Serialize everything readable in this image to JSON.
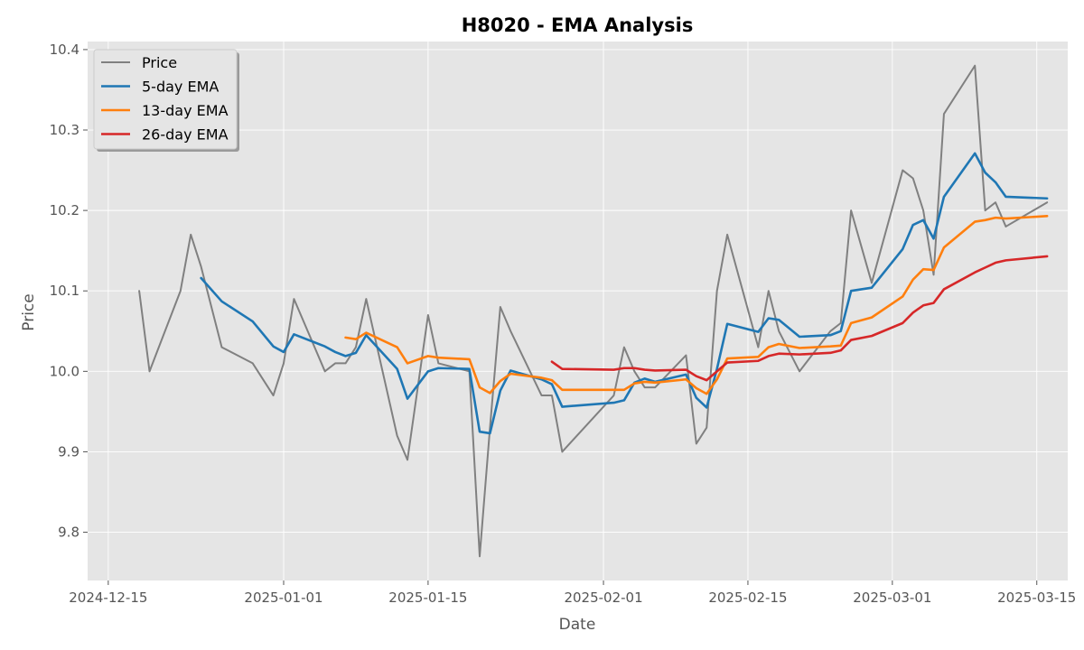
{
  "chart_data": {
    "type": "line",
    "title": "H8020 - EMA Analysis",
    "xlabel": "Date",
    "ylabel": "Price",
    "xlim": [
      "2024-12-13",
      "2025-03-18"
    ],
    "ylim": [
      9.74,
      10.41
    ],
    "x_ticks": [
      "2024-12-15",
      "2025-01-01",
      "2025-01-15",
      "2025-02-01",
      "2025-02-15",
      "2025-03-01",
      "2025-03-15"
    ],
    "y_ticks": [
      9.8,
      9.9,
      10.0,
      10.1,
      10.2,
      10.3,
      10.4
    ],
    "y_tick_labels": [
      "9.8",
      "9.9",
      "10.0",
      "10.1",
      "10.2",
      "10.3",
      "10.4"
    ],
    "grid": true,
    "background": "#e5e5e5",
    "legend_position": "top-left",
    "dates": [
      "2024-12-18",
      "2024-12-19",
      "2024-12-22",
      "2024-12-23",
      "2024-12-24",
      "2024-12-26",
      "2024-12-29",
      "2024-12-31",
      "2025-01-01",
      "2025-01-02",
      "2025-01-05",
      "2025-01-06",
      "2025-01-07",
      "2025-01-08",
      "2025-01-09",
      "2025-01-12",
      "2025-01-13",
      "2025-01-15",
      "2025-01-16",
      "2025-01-19",
      "2025-01-20",
      "2025-01-21",
      "2025-01-22",
      "2025-01-23",
      "2025-01-26",
      "2025-01-27",
      "2025-01-28",
      "2025-02-02",
      "2025-02-03",
      "2025-02-04",
      "2025-02-05",
      "2025-02-06",
      "2025-02-09",
      "2025-02-10",
      "2025-02-11",
      "2025-02-12",
      "2025-02-13",
      "2025-02-16",
      "2025-02-17",
      "2025-02-18",
      "2025-02-20",
      "2025-02-23",
      "2025-02-24",
      "2025-02-25",
      "2025-02-27",
      "2025-03-02",
      "2025-03-03",
      "2025-03-04",
      "2025-03-05",
      "2025-03-06",
      "2025-03-09",
      "2025-03-10",
      "2025-03-11",
      "2025-03-12",
      "2025-03-16"
    ],
    "series": [
      {
        "name": "Price",
        "color": "#808080",
        "values": [
          10.1,
          10.0,
          10.1,
          10.17,
          10.13,
          10.03,
          10.01,
          9.97,
          10.01,
          10.09,
          10.0,
          10.01,
          10.01,
          10.03,
          10.09,
          9.92,
          9.89,
          10.07,
          10.01,
          10.0,
          9.77,
          9.93,
          10.08,
          10.05,
          9.97,
          9.97,
          9.9,
          9.97,
          10.03,
          10.0,
          9.98,
          9.98,
          10.02,
          9.91,
          9.93,
          10.1,
          10.17,
          10.03,
          10.1,
          10.05,
          10.0,
          10.05,
          10.06,
          10.2,
          10.11,
          10.25,
          10.24,
          10.2,
          10.12,
          10.32,
          10.38,
          10.2,
          10.21,
          10.18,
          10.21
        ]
      },
      {
        "name": "5-day EMA",
        "color": "#1f77b4",
        "values": [
          null,
          null,
          null,
          null,
          10.116,
          10.087,
          10.062,
          10.031,
          10.024,
          10.046,
          10.031,
          10.024,
          10.019,
          10.023,
          10.045,
          10.003,
          9.966,
          10.0,
          10.004,
          10.003,
          9.925,
          9.923,
          9.976,
          10.001,
          9.99,
          9.984,
          9.956,
          9.961,
          9.964,
          9.986,
          9.991,
          9.987,
          9.996,
          9.967,
          9.955,
          10.003,
          10.059,
          10.049,
          10.066,
          10.064,
          10.043,
          10.045,
          10.05,
          10.1,
          10.104,
          10.152,
          10.182,
          10.188,
          10.165,
          10.217,
          10.271,
          10.247,
          10.235,
          10.217,
          10.215
        ]
      },
      {
        "name": "13-day EMA",
        "color": "#ff7f0e",
        "values": [
          null,
          null,
          null,
          null,
          null,
          null,
          null,
          null,
          null,
          null,
          null,
          null,
          10.042,
          10.04,
          10.048,
          10.03,
          10.01,
          10.019,
          10.017,
          10.015,
          9.98,
          9.973,
          9.988,
          9.997,
          9.992,
          9.989,
          9.977,
          9.977,
          9.977,
          9.985,
          9.987,
          9.986,
          9.99,
          9.979,
          9.972,
          9.99,
          10.016,
          10.018,
          10.03,
          10.034,
          10.029,
          10.031,
          10.032,
          10.06,
          10.067,
          10.093,
          10.114,
          10.127,
          10.126,
          10.154,
          10.186,
          10.188,
          10.191,
          10.19,
          10.193
        ]
      },
      {
        "name": "26-day EMA",
        "color": "#d62728",
        "values": [
          null,
          null,
          null,
          null,
          null,
          null,
          null,
          null,
          null,
          null,
          null,
          null,
          null,
          null,
          null,
          null,
          null,
          null,
          null,
          null,
          null,
          null,
          null,
          null,
          null,
          10.012,
          10.003,
          10.002,
          10.004,
          10.004,
          10.002,
          10.001,
          10.002,
          9.994,
          9.989,
          10.0,
          10.011,
          10.013,
          10.019,
          10.022,
          10.021,
          10.023,
          10.026,
          10.039,
          10.044,
          10.06,
          10.073,
          10.082,
          10.085,
          10.102,
          10.123,
          10.129,
          10.135,
          10.138,
          10.143
        ]
      }
    ]
  }
}
